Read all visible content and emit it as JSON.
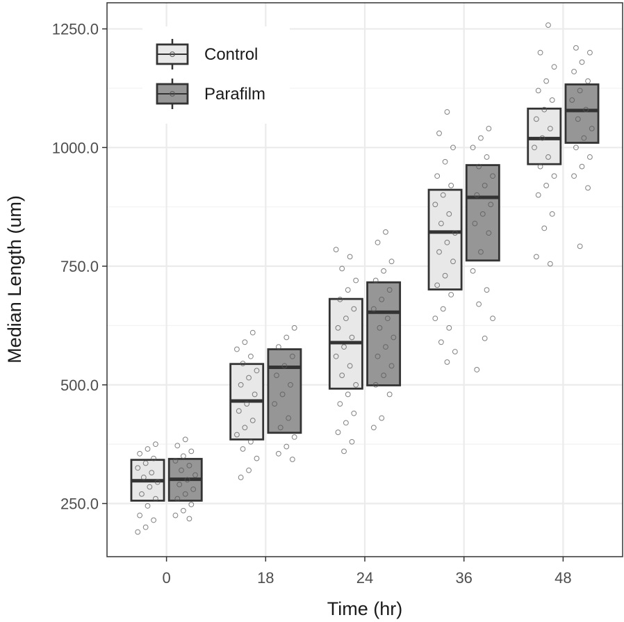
{
  "chart_data": {
    "type": "boxplot",
    "xlabel": "Time (hr)",
    "ylabel": "Median Length (um)",
    "categories": [
      "0",
      "18",
      "24",
      "36",
      "48"
    ],
    "yticks": [
      "250.0",
      "500.0",
      "750.0",
      "1000.0",
      "1250.0"
    ],
    "ytick_values": [
      250,
      500,
      750,
      1000,
      1250
    ],
    "ylim": [
      138,
      1305
    ],
    "grid": true,
    "legend_position": "top-left",
    "series": [
      {
        "name": "Control",
        "color": "#e8e8e8",
        "boxes": [
          {
            "q1": 256,
            "median": 298,
            "q3": 342
          },
          {
            "q1": 385,
            "median": 466,
            "q3": 544
          },
          {
            "q1": 492,
            "median": 589,
            "q3": 681
          },
          {
            "q1": 701,
            "median": 822,
            "q3": 911
          },
          {
            "q1": 965,
            "median": 1019,
            "q3": 1082
          }
        ],
        "points": [
          [
            190,
            200,
            215,
            225,
            245,
            260,
            270,
            285,
            295,
            305,
            315,
            325,
            335,
            345,
            355,
            365,
            375
          ],
          [
            305,
            320,
            345,
            365,
            380,
            395,
            410,
            425,
            445,
            460,
            480,
            500,
            515,
            530,
            545,
            560,
            575,
            590,
            610
          ],
          [
            360,
            380,
            400,
            420,
            440,
            460,
            480,
            500,
            520,
            540,
            560,
            580,
            600,
            620,
            640,
            660,
            680,
            700,
            720,
            745,
            770,
            785
          ],
          [
            548,
            570,
            590,
            620,
            640,
            660,
            690,
            710,
            730,
            760,
            780,
            800,
            820,
            840,
            860,
            880,
            900,
            920,
            940,
            970,
            1000,
            1030,
            1075
          ],
          [
            755,
            770,
            830,
            860,
            900,
            920,
            940,
            960,
            980,
            1000,
            1020,
            1040,
            1060,
            1080,
            1100,
            1120,
            1140,
            1170,
            1200,
            1258
          ]
        ]
      },
      {
        "name": "Parafilm",
        "color": "#969696",
        "boxes": [
          {
            "q1": 256,
            "median": 301,
            "q3": 344
          },
          {
            "q1": 399,
            "median": 537,
            "q3": 575
          },
          {
            "q1": 499,
            "median": 653,
            "q3": 716
          },
          {
            "q1": 762,
            "median": 895,
            "q3": 963
          },
          {
            "q1": 1010,
            "median": 1078,
            "q3": 1133
          }
        ],
        "points": [
          [
            218,
            225,
            235,
            248,
            260,
            270,
            280,
            290,
            300,
            310,
            320,
            330,
            340,
            350,
            360,
            372,
            385
          ],
          [
            343,
            355,
            370,
            390,
            410,
            430,
            460,
            480,
            500,
            520,
            540,
            560,
            580,
            600,
            620
          ],
          [
            410,
            430,
            480,
            500,
            520,
            540,
            560,
            580,
            600,
            620,
            640,
            660,
            680,
            700,
            720,
            740,
            760,
            800,
            822
          ],
          [
            532,
            598,
            640,
            670,
            700,
            740,
            780,
            820,
            840,
            860,
            880,
            900,
            920,
            940,
            960,
            980,
            1000,
            1020,
            1040
          ],
          [
            792,
            915,
            940,
            960,
            980,
            1000,
            1020,
            1040,
            1060,
            1080,
            1100,
            1120,
            1140,
            1160,
            1180,
            1200,
            1210
          ]
        ]
      }
    ]
  }
}
